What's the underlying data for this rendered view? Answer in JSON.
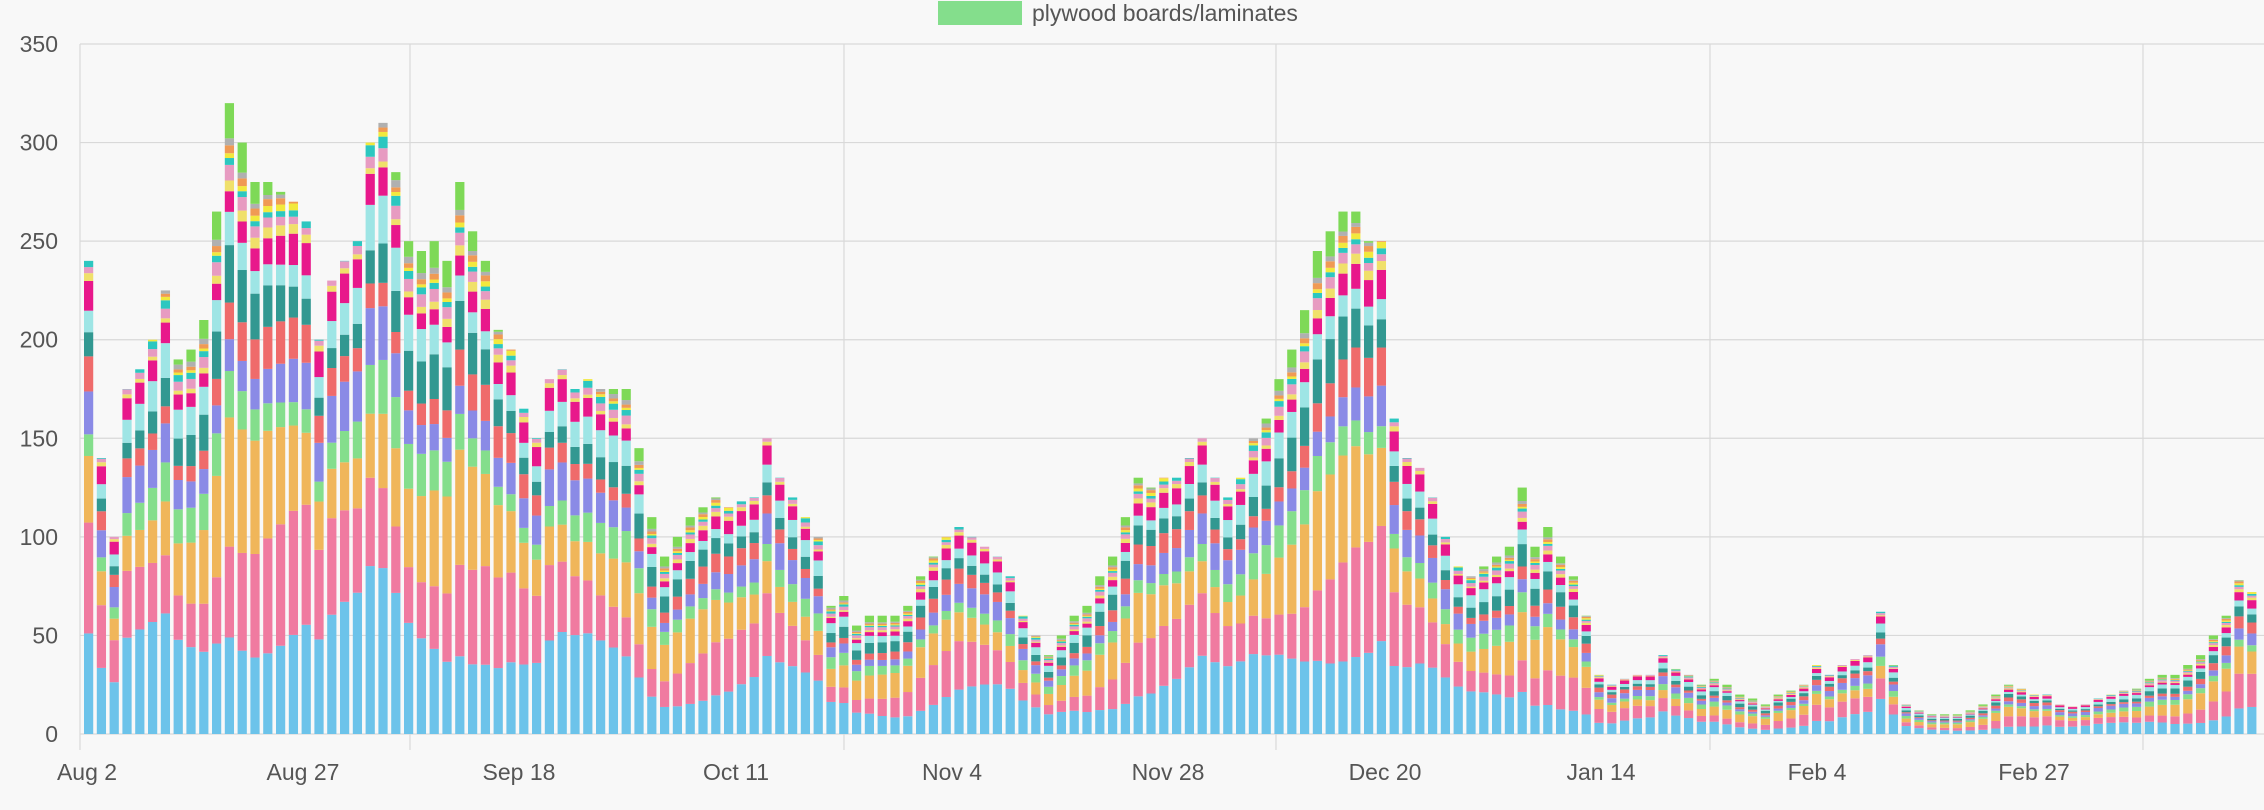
{
  "chart_data": {
    "type": "bar",
    "stacked": true,
    "title": "",
    "xlabel": "",
    "ylabel": "",
    "ylim": [
      0,
      350
    ],
    "yticks": [
      0,
      50,
      100,
      150,
      200,
      250,
      300,
      350
    ],
    "x_tick_labels": [
      "Aug 2",
      "Aug 27",
      "Sep 18",
      "Oct 11",
      "Nov 4",
      "Nov 28",
      "Dec 20",
      "Jan 14",
      "Feb 4",
      "Feb 27"
    ],
    "legend": [
      {
        "name": "plywood boards/laminates",
        "color": "#84de8c"
      }
    ],
    "series_colors": [
      "#6cc3ea",
      "#f07aa0",
      "#f0b65a",
      "#84de8c",
      "#8a8ae6",
      "#ef6b6b",
      "#329891",
      "#9ee5e5",
      "#e8188b",
      "#f0e06a",
      "#e79bc1",
      "#2cc7c0",
      "#f2e93d",
      "#f09a54",
      "#b0b0b0",
      "#7ed957"
    ],
    "totals": [
      240,
      140,
      100,
      175,
      185,
      200,
      225,
      190,
      195,
      210,
      265,
      320,
      300,
      280,
      280,
      275,
      270,
      260,
      200,
      230,
      240,
      250,
      300,
      310,
      285,
      250,
      245,
      250,
      240,
      280,
      255,
      240,
      205,
      195,
      165,
      150,
      180,
      185,
      175,
      180,
      175,
      175,
      175,
      145,
      110,
      90,
      100,
      110,
      115,
      120,
      115,
      118,
      120,
      150,
      130,
      120,
      110,
      100,
      65,
      70,
      55,
      60,
      60,
      60,
      65,
      80,
      90,
      100,
      105,
      100,
      95,
      90,
      80,
      60,
      50,
      40,
      50,
      60,
      65,
      80,
      90,
      110,
      130,
      125,
      130,
      130,
      140,
      150,
      130,
      120,
      130,
      150,
      160,
      180,
      195,
      215,
      245,
      255,
      265,
      265,
      250,
      250,
      160,
      140,
      135,
      120,
      100,
      85,
      80,
      85,
      90,
      95,
      125,
      95,
      105,
      90,
      80,
      60,
      30,
      25,
      28,
      30,
      30,
      40,
      33,
      30,
      25,
      28,
      25,
      20,
      18,
      15,
      20,
      22,
      25,
      35,
      30,
      35,
      38,
      40,
      62,
      35,
      15,
      12,
      10,
      10,
      10,
      12,
      15,
      20,
      25,
      23,
      20,
      20,
      15,
      14,
      15,
      18,
      20,
      22,
      23,
      28,
      30,
      30,
      35,
      40,
      50,
      60,
      78,
      72
    ]
  },
  "series": [
    {
      "name": "blue",
      "color": "#6cc3ea"
    },
    {
      "name": "pink",
      "color": "#f07aa0"
    },
    {
      "name": "orange",
      "color": "#f0b65a"
    },
    {
      "name": "plywood boards/laminates",
      "color": "#84de8c"
    },
    {
      "name": "purple",
      "color": "#8a8ae6"
    },
    {
      "name": "red",
      "color": "#ef6b6b"
    },
    {
      "name": "teal",
      "color": "#329891"
    },
    {
      "name": "light-cyan",
      "color": "#9ee5e5"
    },
    {
      "name": "magenta",
      "color": "#e8188b"
    },
    {
      "name": "yellow",
      "color": "#f0e06a"
    },
    {
      "name": "light-pink",
      "color": "#e79bc1"
    },
    {
      "name": "turquoise",
      "color": "#2cc7c0"
    },
    {
      "name": "bright-yellow",
      "color": "#f2e93d"
    },
    {
      "name": "light-orange",
      "color": "#f09a54"
    },
    {
      "name": "grey",
      "color": "#b0b0b0"
    },
    {
      "name": "green",
      "color": "#7ed957"
    }
  ]
}
